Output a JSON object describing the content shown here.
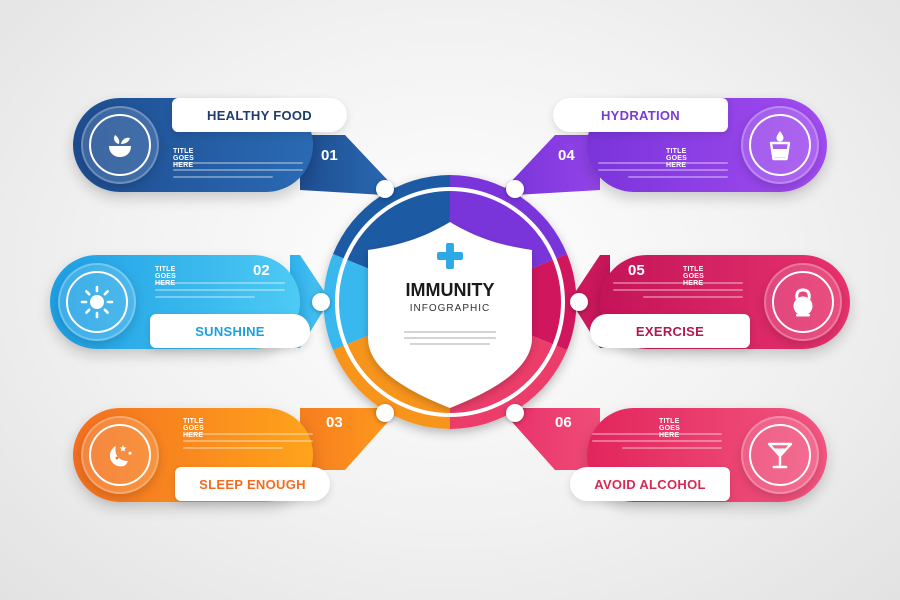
{
  "center": {
    "title": "IMMUNITY",
    "subtitle": "INFOGRAPHIC",
    "plus_color": "#2fa9e6"
  },
  "items": [
    {
      "number": "01",
      "label": "HEALTHY FOOD",
      "title": "TITLE GOES HERE",
      "color_from": "#1e4d90",
      "color_to": "#2e7fc6",
      "label_color": "#1e3d6e",
      "icon": "salad-bowl-icon"
    },
    {
      "number": "02",
      "label": "SUNSHINE",
      "title": "TITLE GOES HERE",
      "color_from": "#1e9fe4",
      "color_to": "#4dcaf4",
      "label_color": "#1ba1e2",
      "icon": "sun-icon"
    },
    {
      "number": "03",
      "label": "SLEEP ENOUGH",
      "title": "TITLE GOES HERE",
      "color_from": "#f37021",
      "color_to": "#ffa41b",
      "label_color": "#f36c21",
      "icon": "moon-stars-icon"
    },
    {
      "number": "04",
      "label": "HYDRATION",
      "title": "TITLE GOES HERE",
      "color_from": "#6a2fd6",
      "color_to": "#a24cf0",
      "label_color": "#7a3ad8",
      "icon": "water-glass-icon"
    },
    {
      "number": "05",
      "label": "EXERCISE",
      "title": "TITLE GOES HERE",
      "color_from": "#c41458",
      "color_to": "#e8336e",
      "label_color": "#b5174f",
      "icon": "kettlebell-icon"
    },
    {
      "number": "06",
      "label": "AVOID ALCOHOL",
      "title": "TITLE GOES HERE",
      "color_from": "#e2255c",
      "color_to": "#f25780",
      "label_color": "#d62a55",
      "icon": "cocktail-glass-icon"
    }
  ]
}
